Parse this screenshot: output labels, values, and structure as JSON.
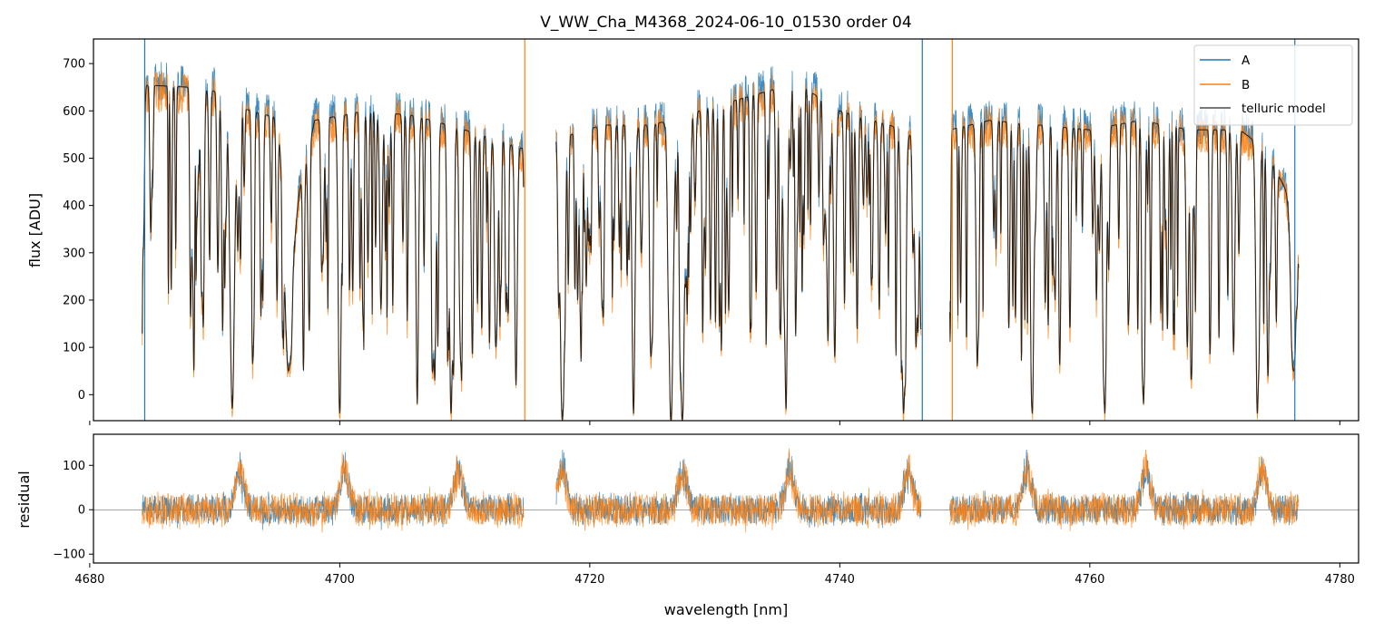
{
  "chart_data": [
    {
      "panel": "flux",
      "type": "line",
      "title": "V_WW_Cha_M4368_2024-06-10_01530  order 04",
      "xlabel": "",
      "ylabel": "flux [ADU]",
      "xlim": [
        4680.3,
        4781.5
      ],
      "ylim": [
        -55,
        752
      ],
      "yticks": [
        0,
        100,
        200,
        300,
        400,
        500,
        600,
        700
      ],
      "ytick_labels": [
        "0",
        "100",
        "200",
        "300",
        "400",
        "500",
        "600",
        "700"
      ],
      "xticks": [
        4680,
        4700,
        4720,
        4740,
        4760,
        4780
      ],
      "legend_position": "top-right",
      "segments": [
        [
          4684.2,
          4714.7
        ],
        [
          4717.3,
          4746.5
        ],
        [
          4748.8,
          4776.7
        ]
      ],
      "continuum": [
        [
          4684.2,
          655
        ],
        [
          4688,
          650
        ],
        [
          4690.5,
          640
        ],
        [
          4691.5,
          610
        ],
        [
          4693,
          600
        ],
        [
          4695,
          585
        ],
        [
          4696.5,
          400
        ],
        [
          4698,
          580
        ],
        [
          4702,
          600
        ],
        [
          4706,
          590
        ],
        [
          4710,
          560
        ],
        [
          4714.7,
          520
        ],
        [
          4717.3,
          540
        ],
        [
          4721,
          570
        ],
        [
          4725,
          570
        ],
        [
          4730,
          610
        ],
        [
          4734,
          640
        ],
        [
          4736.5,
          660
        ],
        [
          4740,
          600
        ],
        [
          4744,
          570
        ],
        [
          4746.5,
          540
        ],
        [
          4748.8,
          560
        ],
        [
          4752,
          580
        ],
        [
          4756,
          570
        ],
        [
          4760,
          560
        ],
        [
          4764,
          580
        ],
        [
          4768,
          560
        ],
        [
          4772,
          560
        ],
        [
          4774,
          520
        ],
        [
          4776.7,
          380
        ]
      ],
      "absorption_lines": [
        [
          4691.4,
          -30,
          0.18
        ],
        [
          4695.9,
          50,
          0.3
        ],
        [
          4700.0,
          -40,
          0.12
        ],
        [
          4703.3,
          180,
          0.1
        ],
        [
          4706.2,
          -20,
          0.1
        ],
        [
          4707.6,
          30,
          0.1
        ],
        [
          4708.9,
          -40,
          0.12
        ],
        [
          4712.5,
          100,
          0.1
        ],
        [
          4714.1,
          20,
          0.1
        ],
        [
          4717.8,
          -55,
          0.15
        ],
        [
          4723.5,
          -40,
          0.12
        ],
        [
          4724.9,
          80,
          0.1
        ],
        [
          4726.5,
          -55,
          0.18
        ],
        [
          4727.4,
          -55,
          0.15
        ],
        [
          4735.7,
          -30,
          0.12
        ],
        [
          4739.6,
          80,
          0.1
        ],
        [
          4745.1,
          -40,
          0.15
        ],
        [
          4746.1,
          100,
          0.1
        ],
        [
          4751.0,
          60,
          0.1
        ],
        [
          4755.4,
          -40,
          0.12
        ],
        [
          4761.2,
          -40,
          0.12
        ],
        [
          4764.3,
          -20,
          0.1
        ],
        [
          4767.8,
          100,
          0.1
        ],
        [
          4771.5,
          90,
          0.1
        ],
        [
          4773.4,
          -40,
          0.12
        ],
        [
          4776.3,
          50,
          0.2
        ]
      ],
      "spikes": [
        4684.4,
        4714.8,
        4746.6,
        4749.0,
        4776.4
      ],
      "series": [
        {
          "name": "A",
          "color": "#1f77b4",
          "offset": 8,
          "noise": 42,
          "seed": 11
        },
        {
          "name": "B",
          "color": "#ff7f0e",
          "offset": -12,
          "noise": 46,
          "seed": 29
        },
        {
          "name": "telluric model",
          "color": "#000000",
          "offset": 0,
          "noise": 0,
          "seed": 3
        }
      ]
    },
    {
      "panel": "residual",
      "type": "line",
      "xlabel": "wavelength [nm]",
      "ylabel": "residual",
      "xlim": [
        4680.3,
        4781.5
      ],
      "ylim": [
        -120,
        170
      ],
      "yticks": [
        -100,
        0,
        100
      ],
      "ytick_labels": [
        "−100",
        "0",
        "100"
      ],
      "xticks": [
        4680,
        4700,
        4720,
        4740,
        4760,
        4780
      ],
      "xtick_labels": [
        "4680",
        "4700",
        "4720",
        "4740",
        "4760",
        "4780"
      ],
      "zero_line": true,
      "segments": [
        [
          4684.2,
          4714.7
        ],
        [
          4717.3,
          4746.5
        ],
        [
          4748.8,
          4776.7
        ]
      ],
      "residual_bumps": [
        4692.0,
        4700.4,
        4709.5,
        4717.8,
        4727.4,
        4736.0,
        4745.5,
        4755.0,
        4764.5,
        4773.8
      ],
      "series": [
        {
          "name": "A",
          "color": "#1f77b4",
          "noise": 32,
          "seed": 7
        },
        {
          "name": "B",
          "color": "#ff7f0e",
          "noise": 36,
          "seed": 19
        }
      ]
    }
  ]
}
